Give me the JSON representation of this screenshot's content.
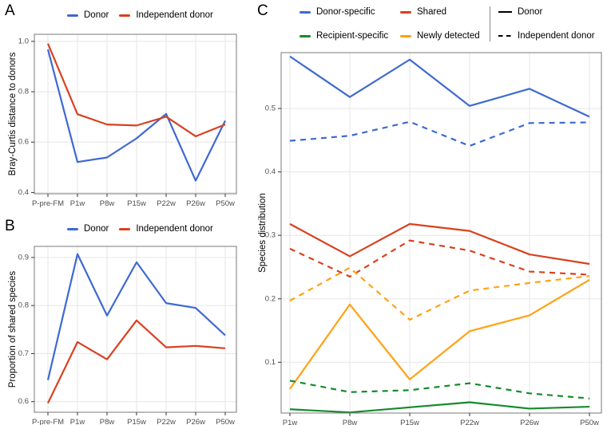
{
  "figure_title": "",
  "panels": {
    "a": {
      "label": "A"
    },
    "b": {
      "label": "B"
    },
    "c": {
      "label": "C"
    }
  },
  "colors": {
    "blue": "#3E69D2",
    "red": "#D8411F",
    "green": "#158A2D",
    "orange": "#FFA212",
    "gridline": "#E8E8E8",
    "panel_border": "#7A7A7A",
    "tick_mark": "#333333",
    "tick_label": "#4D4D4D",
    "legend_divider": "#8A8A8A"
  },
  "chart_data": [
    {
      "id": "A",
      "type": "line",
      "title": "",
      "xlabel": "",
      "ylabel": "Bray-Curtis distance to donors",
      "categories": [
        "P-pre-FM",
        "P1w",
        "P8w",
        "P15w",
        "P22w",
        "P26w",
        "P50w"
      ],
      "ylim": [
        0.395,
        1.028
      ],
      "yticks": [
        0.4,
        0.6,
        0.8,
        1.0
      ],
      "grid": "major",
      "legend_position": "top",
      "series": [
        {
          "name": "Donor",
          "color": "#3E69D2",
          "dash": "solid",
          "values": [
            0.968,
            0.521,
            0.539,
            0.615,
            0.712,
            0.447,
            0.685
          ]
        },
        {
          "name": "Independent donor",
          "color": "#D8411F",
          "dash": "solid",
          "values": [
            0.991,
            0.711,
            0.67,
            0.666,
            0.701,
            0.623,
            0.67
          ]
        }
      ]
    },
    {
      "id": "B",
      "type": "line",
      "title": "",
      "xlabel": "",
      "ylabel": "Proportion of shared species",
      "categories": [
        "P-pre-FM",
        "P1w",
        "P8w",
        "P15w",
        "P22w",
        "P26w",
        "P50w"
      ],
      "ylim": [
        0.578,
        0.923
      ],
      "yticks": [
        0.6,
        0.7,
        0.8,
        0.9
      ],
      "grid": "major",
      "legend_position": "top",
      "series": [
        {
          "name": "Donor",
          "color": "#3E69D2",
          "dash": "solid",
          "values": [
            0.645,
            0.907,
            0.779,
            0.89,
            0.805,
            0.795,
            0.738
          ]
        },
        {
          "name": "Independent donor",
          "color": "#D8411F",
          "dash": "solid",
          "values": [
            0.597,
            0.724,
            0.688,
            0.769,
            0.713,
            0.716,
            0.711
          ]
        }
      ]
    },
    {
      "id": "C",
      "type": "line",
      "title": "",
      "xlabel": "",
      "ylabel": "Species distribution",
      "categories": [
        "P1w",
        "P8w",
        "P15w",
        "P22w",
        "P26w",
        "P50w"
      ],
      "ylim": [
        0.02,
        0.588
      ],
      "yticks": [
        0.1,
        0.2,
        0.3,
        0.4,
        0.5
      ],
      "grid": "major",
      "legend_position": "top",
      "legend_colors": [
        {
          "name": "Donor-specific",
          "color": "#3E69D2"
        },
        {
          "name": "Shared",
          "color": "#D8411F"
        },
        {
          "name": "Recipient-specific",
          "color": "#158A2D"
        },
        {
          "name": "Newly detected",
          "color": "#FFA212"
        }
      ],
      "legend_linetypes": [
        {
          "name": "Donor",
          "dash": "solid"
        },
        {
          "name": "Independent donor",
          "dash": "dashed"
        }
      ],
      "series": [
        {
          "name": "Donor-specific Donor",
          "group": "Donor-specific",
          "linetype": "Donor",
          "color": "#3E69D2",
          "dash": "solid",
          "values": [
            0.582,
            0.518,
            0.577,
            0.504,
            0.531,
            0.487
          ]
        },
        {
          "name": "Donor-specific Independent donor",
          "group": "Donor-specific",
          "linetype": "Independent donor",
          "color": "#3E69D2",
          "dash": "dashed",
          "values": [
            0.449,
            0.457,
            0.479,
            0.441,
            0.477,
            0.478
          ]
        },
        {
          "name": "Shared Donor",
          "group": "Shared",
          "linetype": "Donor",
          "color": "#D8411F",
          "dash": "solid",
          "values": [
            0.318,
            0.267,
            0.318,
            0.307,
            0.27,
            0.255
          ]
        },
        {
          "name": "Shared Independent donor",
          "group": "Shared",
          "linetype": "Independent donor",
          "color": "#D8411F",
          "dash": "dashed",
          "values": [
            0.279,
            0.235,
            0.292,
            0.276,
            0.243,
            0.238
          ]
        },
        {
          "name": "Newly detected Donor",
          "group": "Newly detected",
          "linetype": "Donor",
          "color": "#FFA212",
          "dash": "solid",
          "values": [
            0.058,
            0.191,
            0.073,
            0.149,
            0.174,
            0.23
          ]
        },
        {
          "name": "Newly detected Independent donor",
          "group": "Newly detected",
          "linetype": "Independent donor",
          "color": "#FFA212",
          "dash": "dashed",
          "values": [
            0.197,
            0.249,
            0.167,
            0.213,
            0.225,
            0.236
          ]
        },
        {
          "name": "Recipient-specific Donor",
          "group": "Recipient-specific",
          "linetype": "Donor",
          "color": "#158A2D",
          "dash": "solid",
          "values": [
            0.026,
            0.021,
            0.029,
            0.037,
            0.027,
            0.03
          ]
        },
        {
          "name": "Recipient-specific Independent donor",
          "group": "Recipient-specific",
          "linetype": "Independent donor",
          "color": "#158A2D",
          "dash": "dashed",
          "values": [
            0.071,
            0.053,
            0.056,
            0.067,
            0.051,
            0.043
          ]
        }
      ]
    }
  ]
}
